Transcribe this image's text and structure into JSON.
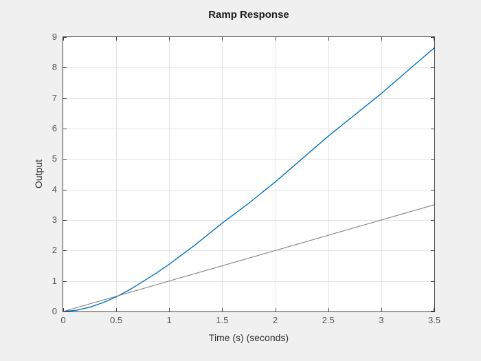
{
  "figure": {
    "background_color": "#f0f0f0",
    "plot_background_color": "#ffffff",
    "axis_box_color": "#3f3f3f",
    "grid_color": "#e3e3e3",
    "tick_label_color": "#555555",
    "title_color": "#1c1c1c"
  },
  "chart_data": {
    "type": "line",
    "title": "Ramp Response",
    "xlabel": "Time (s) (seconds)",
    "ylabel": "Output",
    "xlim": [
      0,
      3.5
    ],
    "ylim": [
      0,
      9
    ],
    "xticks": [
      0,
      0.5,
      1,
      1.5,
      2,
      2.5,
      3,
      3.5
    ],
    "xtick_labels": [
      "0",
      "0.5",
      "1",
      "1.5",
      "2",
      "2.5",
      "3",
      "3.5"
    ],
    "yticks": [
      0,
      1,
      2,
      3,
      4,
      5,
      6,
      7,
      8,
      9
    ],
    "ytick_labels": [
      "0",
      "1",
      "2",
      "3",
      "4",
      "5",
      "6",
      "7",
      "8",
      "9"
    ],
    "grid": true,
    "legend_position": "none",
    "series": [
      {
        "name": "ramp-response-curve",
        "color": "#0072bd",
        "line_width": 1.4,
        "x": [
          0,
          0.125,
          0.25,
          0.375,
          0.5,
          0.625,
          0.75,
          0.875,
          1,
          1.25,
          1.5,
          1.75,
          2,
          2.25,
          2.5,
          2.75,
          3,
          3.25,
          3.5
        ],
        "y": [
          0,
          0.04,
          0.14,
          0.29,
          0.48,
          0.71,
          0.98,
          1.25,
          1.55,
          2.2,
          2.9,
          3.55,
          4.25,
          5.0,
          5.75,
          6.45,
          7.15,
          7.9,
          8.65
        ]
      },
      {
        "name": "ramp-input-reference-line",
        "color": "#808080",
        "line_width": 1.1,
        "x": [
          0,
          3.5
        ],
        "y": [
          0,
          3.5
        ]
      }
    ]
  }
}
